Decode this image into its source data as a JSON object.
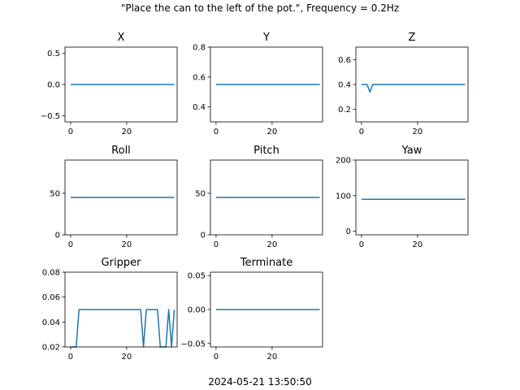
{
  "figure": {
    "suptitle": "\"Place the can to the left of the pot.\", Frequency = 0.2Hz",
    "footer": "2024-05-21 13:50:50"
  },
  "colors": {
    "line": "#1f77b4",
    "axes": "#000000",
    "background": "#ffffff"
  },
  "chart_data": [
    {
      "type": "line",
      "title": "X",
      "xlim": [
        -2,
        38
      ],
      "ylim": [
        -0.6,
        0.6
      ],
      "xticks": [
        0,
        20
      ],
      "yticks": [
        -0.5,
        0.0,
        0.5
      ],
      "ytick_labels": [
        "−0.5",
        "0.0",
        "0.5"
      ],
      "x": [
        0,
        37
      ],
      "y": [
        0.0,
        0.0
      ]
    },
    {
      "type": "line",
      "title": "Y",
      "xlim": [
        -2,
        38
      ],
      "ylim": [
        0.3,
        0.8
      ],
      "xticks": [
        0,
        20
      ],
      "yticks": [
        0.4,
        0.6,
        0.8
      ],
      "ytick_labels": [
        "0.4",
        "0.6",
        "0.8"
      ],
      "x": [
        0,
        37
      ],
      "y": [
        0.55,
        0.55
      ]
    },
    {
      "type": "line",
      "title": "Z",
      "xlim": [
        -2,
        38
      ],
      "ylim": [
        0.1,
        0.7
      ],
      "xticks": [
        0,
        20
      ],
      "yticks": [
        0.2,
        0.4,
        0.6
      ],
      "ytick_labels": [
        "0.2",
        "0.4",
        "0.6"
      ],
      "x": [
        0,
        1,
        2,
        3,
        4,
        5,
        37
      ],
      "y": [
        0.4,
        0.4,
        0.4,
        0.34,
        0.4,
        0.4,
        0.4
      ]
    },
    {
      "type": "line",
      "title": "Roll",
      "xlim": [
        -2,
        38
      ],
      "ylim": [
        0,
        90
      ],
      "xticks": [
        0,
        20
      ],
      "yticks": [
        0,
        50
      ],
      "ytick_labels": [
        "0",
        "50"
      ],
      "x": [
        0,
        37
      ],
      "y": [
        45,
        45
      ]
    },
    {
      "type": "line",
      "title": "Pitch",
      "xlim": [
        -2,
        38
      ],
      "ylim": [
        0,
        90
      ],
      "xticks": [
        0,
        20
      ],
      "yticks": [
        0,
        50
      ],
      "ytick_labels": [
        "0",
        "50"
      ],
      "x": [
        0,
        37
      ],
      "y": [
        45,
        45
      ]
    },
    {
      "type": "line",
      "title": "Yaw",
      "xlim": [
        -2,
        38
      ],
      "ylim": [
        -10,
        200
      ],
      "xticks": [
        0,
        20
      ],
      "yticks": [
        0,
        100,
        200
      ],
      "ytick_labels": [
        "0",
        "100",
        "200"
      ],
      "x": [
        0,
        37
      ],
      "y": [
        90,
        90
      ]
    },
    {
      "type": "line",
      "title": "Gripper",
      "xlim": [
        -2,
        38
      ],
      "ylim": [
        0.02,
        0.08
      ],
      "xticks": [
        0,
        20
      ],
      "yticks": [
        0.02,
        0.04,
        0.06,
        0.08
      ],
      "ytick_labels": [
        "0.02",
        "0.04",
        "0.06",
        "0.08"
      ],
      "x": [
        0,
        1,
        2,
        3,
        25,
        26,
        27,
        31,
        32,
        33,
        34,
        35,
        36,
        37
      ],
      "y": [
        0.02,
        0.02,
        0.02,
        0.05,
        0.05,
        0.02,
        0.05,
        0.05,
        0.02,
        0.02,
        0.02,
        0.05,
        0.02,
        0.05
      ]
    },
    {
      "type": "line",
      "title": "Terminate",
      "xlim": [
        -2,
        38
      ],
      "ylim": [
        -0.055,
        0.055
      ],
      "xticks": [
        0,
        20
      ],
      "yticks": [
        -0.05,
        0.0,
        0.05
      ],
      "ytick_labels": [
        "−0.05",
        "0.00",
        "0.05"
      ],
      "x": [
        0,
        37
      ],
      "y": [
        0.0,
        0.0
      ]
    }
  ]
}
